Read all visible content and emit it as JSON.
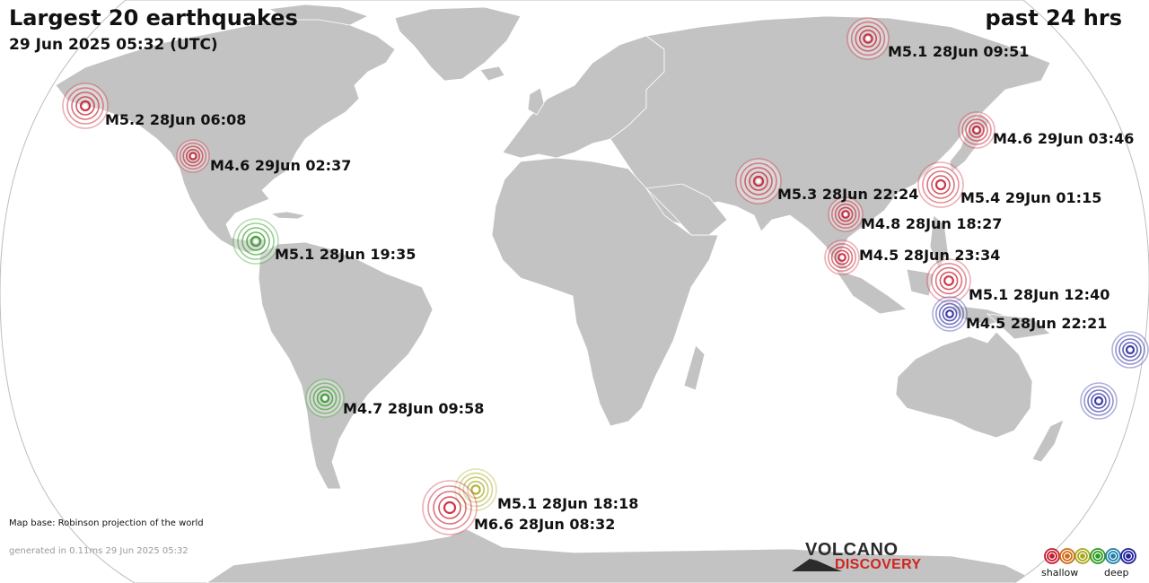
{
  "header": {
    "title": "Largest 20 earthquakes",
    "timespan": "past 24 hrs",
    "timestamp": "29 Jun 2025 05:32 (UTC)"
  },
  "map": {
    "projection_note": "Map base: Robinson projection of the world",
    "land_color": "#c3c3c3",
    "ocean_color": "#ffffff"
  },
  "depth_colors": {
    "shallow": "#c8192c",
    "intermediate": "#2a9a1e",
    "medium": "#a8a81c",
    "deep": "#20209a"
  },
  "quakes": [
    {
      "label": "M5.1 28Jun 09:51",
      "depth": "shallow"
    },
    {
      "label": "M5.2 28Jun 06:08",
      "depth": "shallow"
    },
    {
      "label": "M4.6 29Jun 03:46",
      "depth": "shallow"
    },
    {
      "label": "M4.6 29Jun 02:37",
      "depth": "shallow"
    },
    {
      "label": "M5.3 28Jun 22:24",
      "depth": "shallow"
    },
    {
      "label": "M5.4 29Jun 01:15",
      "depth": "shallow"
    },
    {
      "label": "M4.8 28Jun 18:27",
      "depth": "shallow"
    },
    {
      "label": "M5.1 28Jun 19:35",
      "depth": "intermediate"
    },
    {
      "label": "M4.5 28Jun 23:34",
      "depth": "shallow"
    },
    {
      "label": "M5.1 28Jun 12:40",
      "depth": "shallow"
    },
    {
      "label": "M4.5 28Jun 22:21",
      "depth": "deep"
    },
    {
      "label": "",
      "depth": "deep"
    },
    {
      "label": "",
      "depth": "deep"
    },
    {
      "label": "M4.7 28Jun 09:58",
      "depth": "intermediate"
    },
    {
      "label": "M5.1 28Jun 18:18",
      "depth": "medium"
    },
    {
      "label": "M6.6 28Jun 08:32",
      "depth": "shallow"
    }
  ],
  "footer": {
    "generated": "generated in 0.11ms 29 Jun 2025 05:32",
    "logo_line1": "VOLCANO",
    "logo_line2": "DISCOVERY",
    "legend_shallow": "shallow",
    "legend_deep": "deep",
    "legend_colors": [
      "#c8192c",
      "#d06a14",
      "#a8a81c",
      "#2a9a1e",
      "#1f7fa8",
      "#20209a"
    ]
  }
}
